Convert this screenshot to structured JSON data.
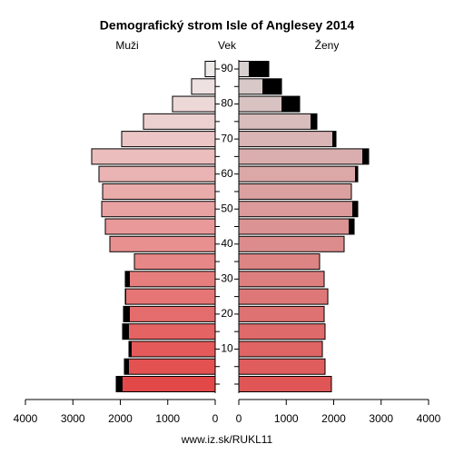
{
  "chart_data": {
    "type": "pyramid",
    "title": "Demografický strom Isle of Anglesey 2014",
    "category_label": "Vek",
    "categories": [
      null,
      null,
      10,
      null,
      20,
      null,
      30,
      null,
      40,
      null,
      50,
      null,
      60,
      null,
      70,
      null,
      80,
      null,
      90
    ],
    "series": [
      {
        "name": "Muži",
        "side": "left",
        "colors": [
          "#e34848",
          "#eeeaea"
        ],
        "values": [
          2086,
          1914,
          1818,
          1952,
          1933,
          1895,
          1895,
          1703,
          2220,
          2316,
          2392,
          2373,
          2450,
          2603,
          1971,
          1512,
          900,
          498,
          211
        ]
      },
      {
        "name": "Ženy",
        "side": "right",
        "colors": [
          "#e05656",
          "#d8d0d0"
        ],
        "values": [
          1952,
          1818,
          1761,
          1818,
          1799,
          1876,
          1799,
          1703,
          2220,
          2431,
          2507,
          2373,
          2507,
          2737,
          2048,
          1646,
          1282,
          900,
          632
        ]
      }
    ],
    "excess_color": "#000000",
    "xlim": [
      0,
      4000
    ],
    "xticks": [
      0,
      1000,
      2000,
      3000,
      4000
    ],
    "footer": "www.iz.sk/RUKL11"
  }
}
